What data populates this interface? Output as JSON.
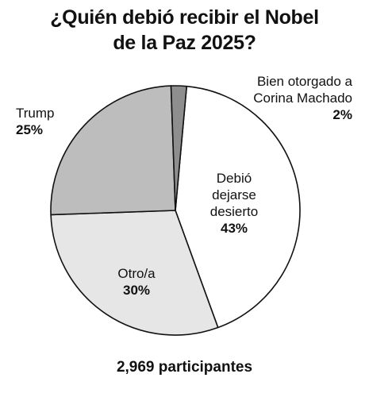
{
  "chart_data": {
    "type": "pie",
    "title": [
      "¿Quién debió recibir el Nobel",
      "de la Paz 2025?"
    ],
    "slices": [
      {
        "label": [
          "Debió",
          "dejarse",
          "desierto"
        ],
        "pct_label": "43%",
        "value": 43,
        "color": "#ffffff"
      },
      {
        "label": [
          "Otro/a"
        ],
        "pct_label": "30%",
        "value": 30,
        "color": "#e6e6e6"
      },
      {
        "label": [
          "Trump"
        ],
        "pct_label": "25%",
        "value": 25,
        "color": "#bdbdbd"
      },
      {
        "label": [
          "Bien otorgado a",
          "Corina Machado"
        ],
        "pct_label": "2%",
        "value": 2,
        "color": "#8e8e8e"
      }
    ],
    "footnote": "2,969 participantes"
  }
}
